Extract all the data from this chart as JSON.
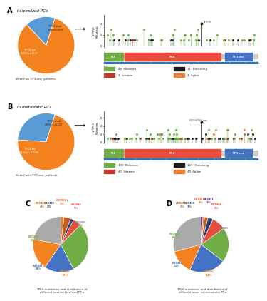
{
  "panel_A": {
    "title": "In localized PCa",
    "subtitle": "Based on 373 seq. patients",
    "panel_label": "A",
    "pie_labels": [
      "TP53 mut\n17%(n=63)",
      "TP53 wt\n83%(n=310)"
    ],
    "pie_values": [
      17,
      83
    ],
    "pie_colors": [
      "#5B9BD5",
      "#F4821F"
    ]
  },
  "panel_B": {
    "title": "In metastatic PCa",
    "subtitle": "Based on 1799 seq. patients",
    "panel_label": "B",
    "pie_labels": [
      "TP53 mut\n29%(n=521)",
      "TP53 wt\n71%(n=1278)"
    ],
    "pie_values": [
      29,
      71
    ],
    "pie_colors": [
      "#5B9BD5",
      "#F4821F"
    ]
  },
  "panel_C": {
    "panel_label": "C",
    "title": "TP53 mutations and distribution of\ndifferent exon in localized PCa",
    "labels": [
      "EXON5",
      "EXON6",
      "EXON7",
      "EXON8",
      "EXON4",
      "EXON9",
      "EXON10",
      "EXON11"
    ],
    "values": [
      23,
      19,
      18,
      31,
      5,
      2,
      4,
      2
    ],
    "colors": [
      "#AAAAAA",
      "#F4821F",
      "#4472C4",
      "#70AD47",
      "#E74C3C",
      "#243F7A",
      "#C55A11",
      "#ED7D31"
    ]
  },
  "panel_D": {
    "panel_label": "D",
    "title": "TP53 mutations and distribution of\ndifferent exon  in metastatic PCa",
    "labels": [
      "EXON5",
      "EXON6",
      "EXON7",
      "EXON8",
      "EXON4",
      "EXON9",
      "EXON10",
      "EXON11",
      "EXON1"
    ],
    "values": [
      29,
      14,
      21,
      20,
      8,
      3,
      2,
      1,
      1
    ],
    "colors": [
      "#AAAAAA",
      "#F4821F",
      "#4472C4",
      "#70AD47",
      "#E74C3C",
      "#243F7A",
      "#C55A11",
      "#ED7D31",
      "#7030A0"
    ]
  },
  "background_color": "#FFFFFF",
  "gene_track": {
    "p53_color": "#E74C3C",
    "p63_color": "#70AD47",
    "tetra_color": "#4472C4",
    "gray_color": "#CCCCCC",
    "exon_bar_color": "#2E75B6"
  },
  "mut_colors": {
    "Missense": "#70AD47",
    "Truncating": "#1C1C1C",
    "Inframe": "#C0392B",
    "Splice": "#ED7D31"
  }
}
